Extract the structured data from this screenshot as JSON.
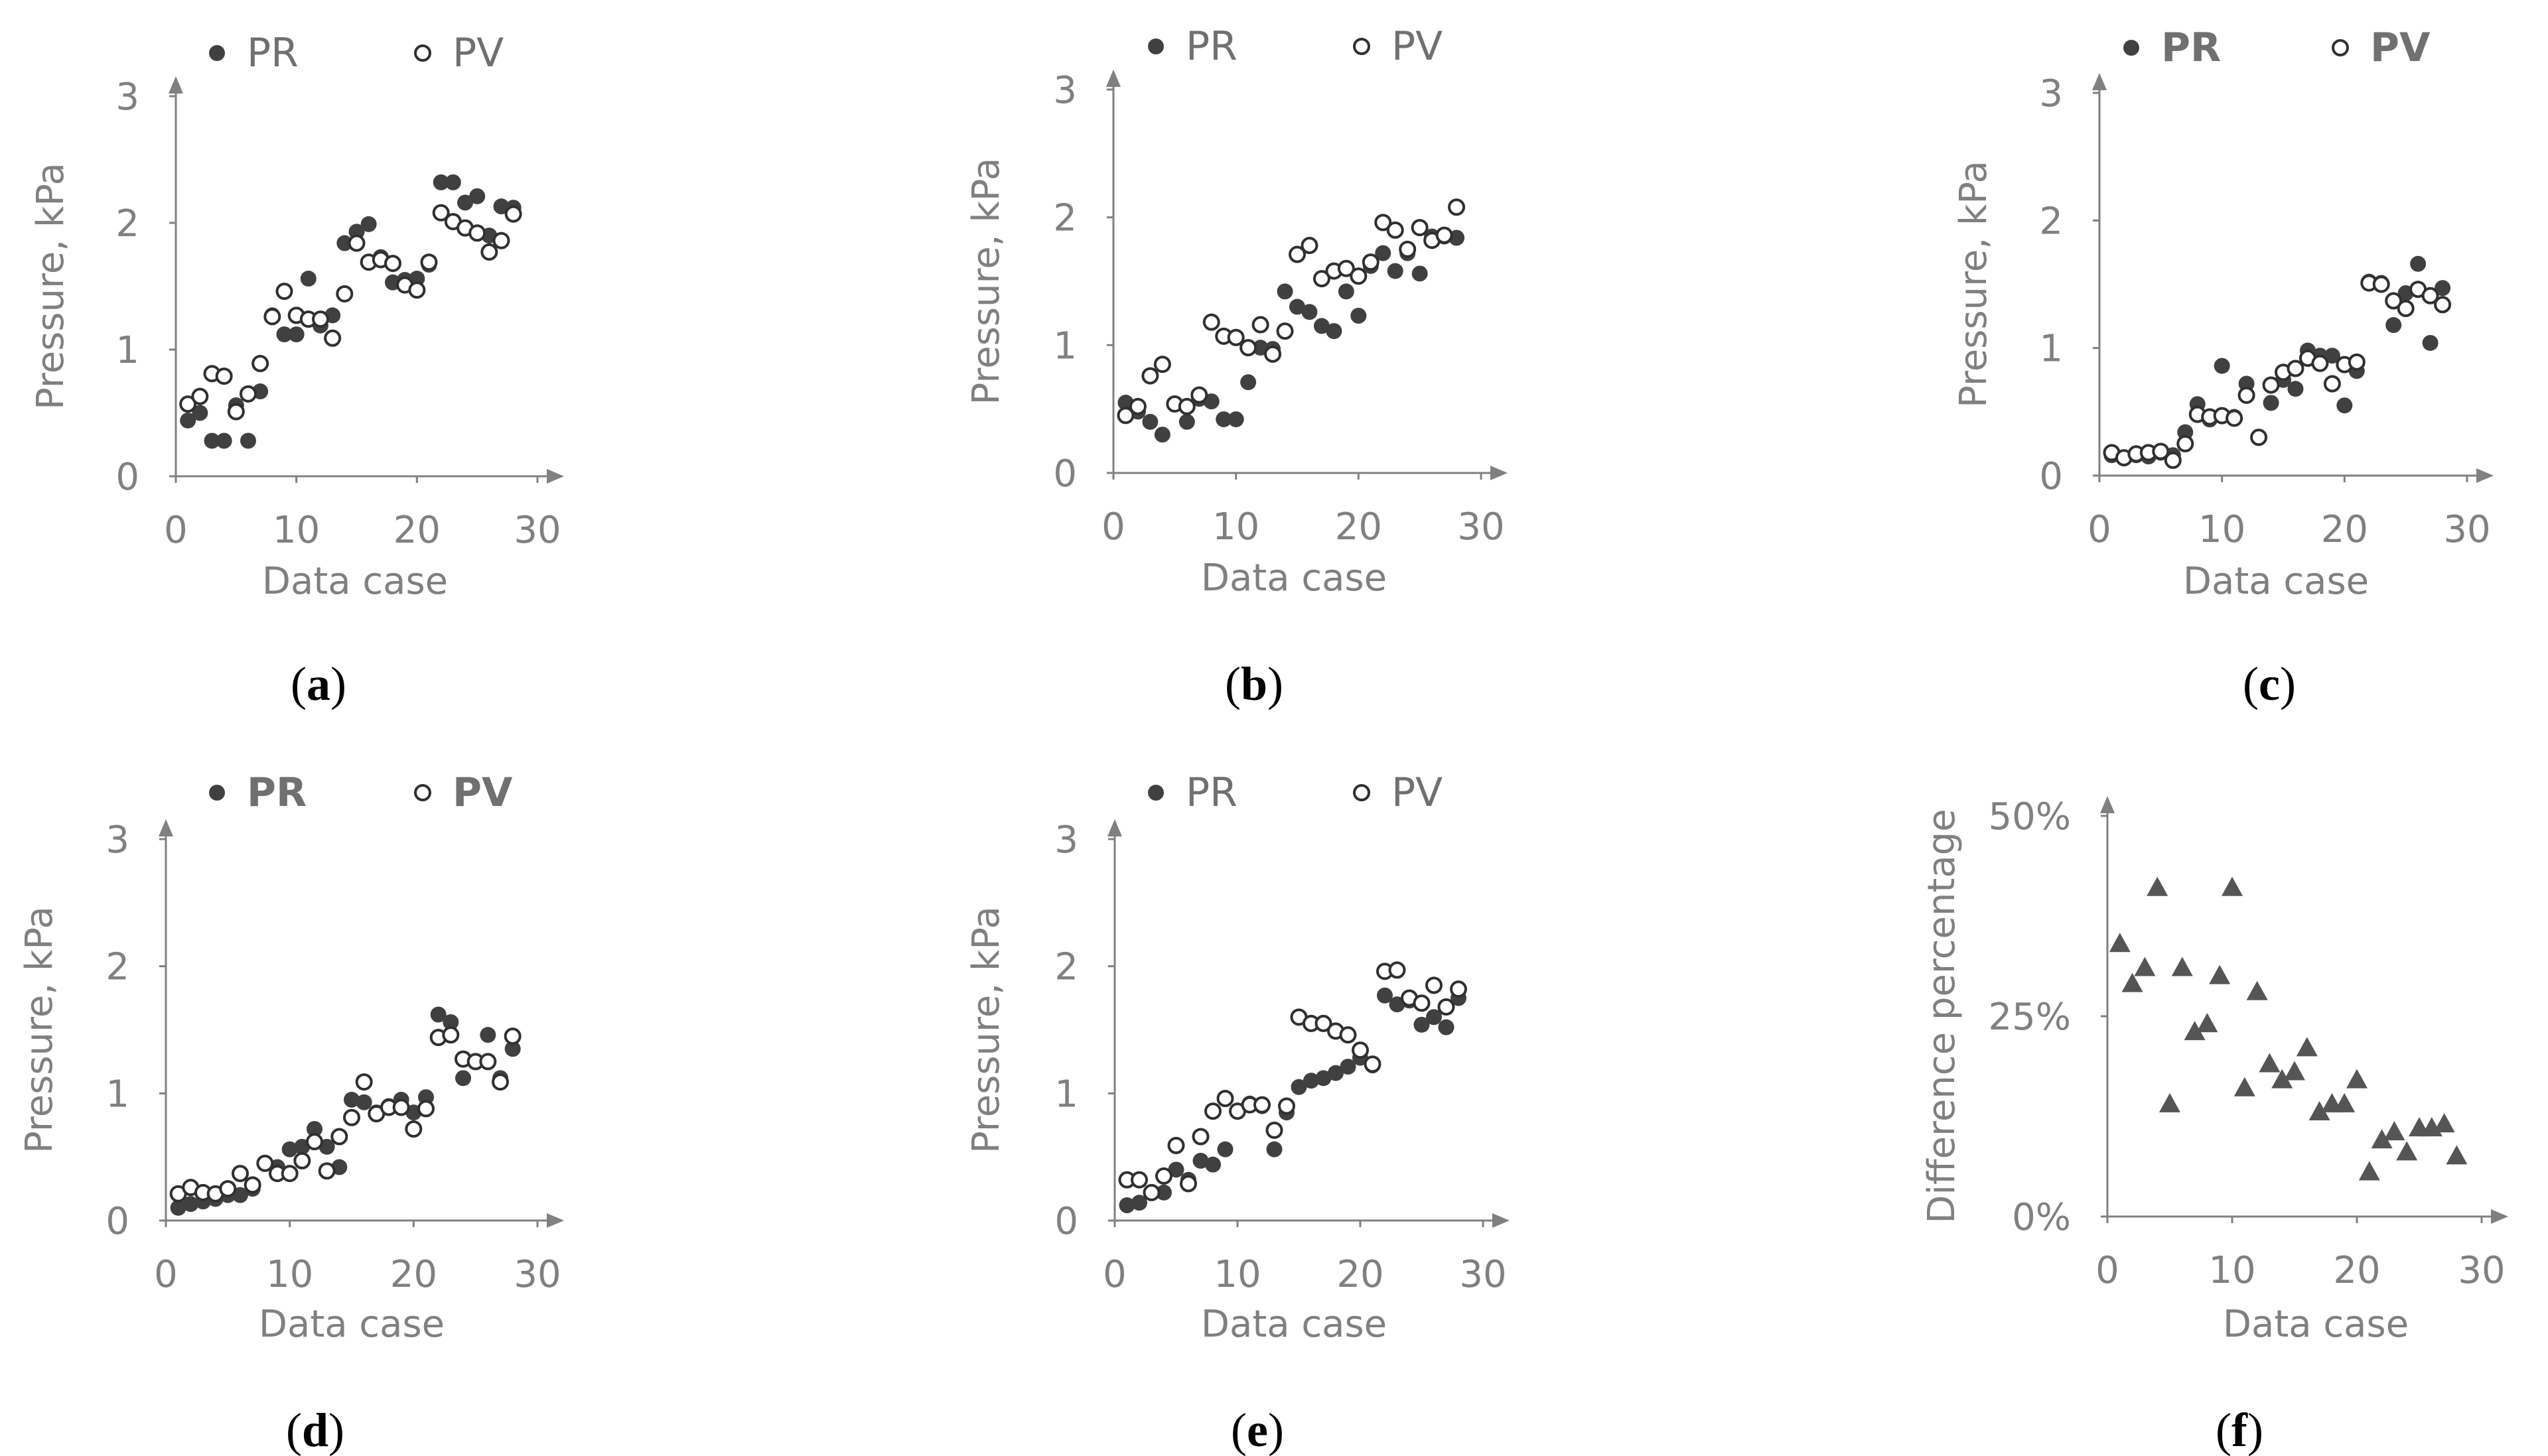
{
  "colors": {
    "axis": "#808080",
    "filled": "#404040",
    "open_stroke": "#303030",
    "text": "#808080"
  },
  "chart_data": [
    {
      "id": "a",
      "type": "scatter",
      "caption_letter": "a",
      "title": "",
      "xlabel": "Data case",
      "ylabel": "Pressure, kPa",
      "xlim": [
        0,
        30
      ],
      "ylim": [
        0,
        3
      ],
      "xticks": [
        "0",
        "10",
        "20",
        "30"
      ],
      "yticks": [
        "0",
        "1",
        "2",
        "3"
      ],
      "legend": [
        "PR",
        "PV"
      ],
      "legend_placement": "top",
      "series": [
        {
          "name": "PR",
          "marker": "filled",
          "x": [
            1,
            2,
            3,
            4,
            5,
            6,
            7,
            8,
            9,
            10,
            11,
            12,
            13,
            14,
            15,
            16,
            17,
            18,
            19,
            20,
            21,
            22,
            23,
            24,
            25,
            26,
            27,
            28
          ],
          "y": [
            0.44,
            0.5,
            0.28,
            0.28,
            0.56,
            0.28,
            0.67,
            1.27,
            1.12,
            1.12,
            1.56,
            1.19,
            1.27,
            1.84,
            1.93,
            1.99,
            1.73,
            1.53,
            1.55,
            1.56,
            1.67,
            2.32,
            2.32,
            2.16,
            2.21,
            1.9,
            2.13,
            2.12
          ]
        },
        {
          "name": "PV",
          "marker": "open",
          "x": [
            1,
            2,
            3,
            4,
            5,
            6,
            7,
            8,
            9,
            10,
            11,
            12,
            13,
            14,
            15,
            16,
            17,
            18,
            19,
            20,
            21,
            22,
            23,
            24,
            25,
            26,
            27,
            28
          ],
          "y": [
            0.57,
            0.63,
            0.81,
            0.79,
            0.51,
            0.65,
            0.89,
            1.26,
            1.46,
            1.27,
            1.24,
            1.24,
            1.09,
            1.44,
            1.84,
            1.69,
            1.71,
            1.68,
            1.51,
            1.47,
            1.69,
            2.08,
            2.01,
            1.96,
            1.92,
            1.77,
            1.86,
            2.07
          ]
        }
      ]
    },
    {
      "id": "b",
      "type": "scatter",
      "caption_letter": "b",
      "title": "",
      "xlabel": "Data case",
      "ylabel": "Pressure, kPa",
      "xlim": [
        0,
        30
      ],
      "ylim": [
        0,
        3
      ],
      "xticks": [
        "0",
        "10",
        "20",
        "30"
      ],
      "yticks": [
        "0",
        "1",
        "2",
        "3"
      ],
      "legend": [
        "PR",
        "PV"
      ],
      "legend_placement": "top",
      "series": [
        {
          "name": "PR",
          "marker": "filled",
          "x": [
            1,
            2,
            3,
            4,
            5,
            6,
            7,
            8,
            9,
            10,
            11,
            12,
            13,
            14,
            15,
            16,
            17,
            18,
            19,
            20,
            21,
            22,
            23,
            24,
            25,
            26,
            27,
            28
          ],
          "y": [
            0.55,
            0.48,
            0.4,
            0.3,
            0.54,
            0.4,
            0.58,
            0.56,
            0.42,
            0.42,
            0.71,
            0.98,
            0.97,
            1.42,
            1.3,
            1.26,
            1.15,
            1.11,
            1.42,
            1.23,
            1.62,
            1.72,
            1.58,
            1.72,
            1.56,
            1.85,
            1.85,
            1.84
          ]
        },
        {
          "name": "PV",
          "marker": "open",
          "x": [
            1,
            2,
            3,
            4,
            5,
            6,
            7,
            8,
            9,
            10,
            11,
            12,
            13,
            14,
            15,
            16,
            17,
            18,
            19,
            20,
            21,
            22,
            23,
            24,
            25,
            26,
            27,
            28
          ],
          "y": [
            0.45,
            0.52,
            0.76,
            0.85,
            0.54,
            0.52,
            0.61,
            1.18,
            1.07,
            1.06,
            0.98,
            1.16,
            0.93,
            1.11,
            1.71,
            1.78,
            1.52,
            1.58,
            1.6,
            1.54,
            1.65,
            1.96,
            1.9,
            1.75,
            1.92,
            1.82,
            1.86,
            2.08
          ]
        }
      ]
    },
    {
      "id": "c",
      "type": "scatter",
      "caption_letter": "c",
      "title": "",
      "xlabel": "Data case",
      "ylabel": "Pressure, kPa",
      "xlim": [
        0,
        30
      ],
      "ylim": [
        0,
        3
      ],
      "xticks": [
        "0",
        "10",
        "20",
        "30"
      ],
      "yticks": [
        "0",
        "1",
        "2",
        "3"
      ],
      "legend": [
        "PR",
        "PV"
      ],
      "legend_placement": "top",
      "series": [
        {
          "name": "PR",
          "marker": "filled",
          "x": [
            1,
            2,
            3,
            4,
            5,
            6,
            7,
            8,
            9,
            10,
            11,
            12,
            13,
            14,
            15,
            16,
            17,
            18,
            19,
            20,
            21,
            22,
            23,
            24,
            25,
            26,
            27,
            28
          ],
          "y": [
            0.16,
            0.14,
            0.16,
            0.15,
            0.18,
            0.16,
            0.34,
            0.56,
            0.44,
            0.86,
            0.46,
            0.72,
            0.3,
            0.57,
            0.75,
            0.68,
            0.98,
            0.94,
            0.94,
            0.55,
            0.82,
            1.52,
            1.51,
            1.18,
            1.43,
            1.66,
            1.04,
            1.47
          ]
        },
        {
          "name": "PV",
          "marker": "open",
          "x": [
            1,
            2,
            3,
            4,
            5,
            6,
            7,
            8,
            9,
            10,
            11,
            12,
            13,
            14,
            15,
            16,
            17,
            18,
            19,
            20,
            21,
            22,
            23,
            24,
            25,
            26,
            27,
            28
          ],
          "y": [
            0.18,
            0.14,
            0.17,
            0.18,
            0.19,
            0.12,
            0.25,
            0.48,
            0.46,
            0.47,
            0.45,
            0.63,
            0.3,
            0.71,
            0.81,
            0.84,
            0.92,
            0.88,
            0.72,
            0.87,
            0.89,
            1.51,
            1.5,
            1.37,
            1.31,
            1.46,
            1.41,
            1.34
          ]
        }
      ]
    },
    {
      "id": "d",
      "type": "scatter",
      "caption_letter": "d",
      "title": "",
      "xlabel": "Data case",
      "ylabel": "Pressure, kPa",
      "xlim": [
        0,
        30
      ],
      "ylim": [
        0,
        3
      ],
      "xticks": [
        "0",
        "10",
        "20",
        "30"
      ],
      "yticks": [
        "0",
        "1",
        "2",
        "3"
      ],
      "legend": [
        "PR",
        "PV"
      ],
      "legend_placement": "top",
      "series": [
        {
          "name": "PR",
          "marker": "filled",
          "x": [
            1,
            2,
            3,
            4,
            5,
            6,
            7,
            8,
            9,
            10,
            11,
            12,
            13,
            14,
            15,
            16,
            17,
            18,
            19,
            20,
            21,
            22,
            23,
            24,
            25,
            26,
            27,
            28
          ],
          "y": [
            0.1,
            0.13,
            0.15,
            0.17,
            0.2,
            0.2,
            0.25,
            0.45,
            0.42,
            0.56,
            0.58,
            0.72,
            0.58,
            0.42,
            0.95,
            0.93,
            0.85,
            0.9,
            0.95,
            0.85,
            0.97,
            1.62,
            1.56,
            1.12,
            1.25,
            1.46,
            1.12,
            1.35
          ]
        },
        {
          "name": "PV",
          "marker": "open",
          "x": [
            1,
            2,
            3,
            4,
            5,
            6,
            7,
            8,
            9,
            10,
            11,
            12,
            13,
            14,
            15,
            16,
            17,
            18,
            19,
            20,
            21,
            22,
            23,
            24,
            25,
            26,
            27,
            28
          ],
          "y": [
            0.21,
            0.26,
            0.22,
            0.21,
            0.25,
            0.37,
            0.28,
            0.45,
            0.37,
            0.37,
            0.47,
            0.62,
            0.39,
            0.66,
            0.81,
            1.09,
            0.84,
            0.89,
            0.89,
            0.72,
            0.88,
            1.44,
            1.46,
            1.27,
            1.25,
            1.25,
            1.09,
            1.45
          ]
        }
      ]
    },
    {
      "id": "e",
      "type": "scatter",
      "caption_letter": "e",
      "title": "",
      "xlabel": "Data case",
      "ylabel": "Pressure, kPa",
      "xlim": [
        0,
        30
      ],
      "ylim": [
        0,
        3
      ],
      "xticks": [
        "0",
        "10",
        "20",
        "30"
      ],
      "yticks": [
        "0",
        "1",
        "2",
        "3"
      ],
      "legend": [
        "PR",
        "PV"
      ],
      "legend_placement": "top",
      "series": [
        {
          "name": "PR",
          "marker": "filled",
          "x": [
            1,
            2,
            3,
            4,
            5,
            6,
            7,
            8,
            9,
            10,
            11,
            12,
            13,
            14,
            15,
            16,
            17,
            18,
            19,
            20,
            21,
            22,
            23,
            24,
            25,
            26,
            27,
            28
          ],
          "y": [
            0.12,
            0.14,
            0.22,
            0.22,
            0.4,
            0.32,
            0.47,
            0.44,
            0.56,
            0.86,
            0.92,
            0.9,
            0.56,
            0.85,
            1.05,
            1.1,
            1.12,
            1.16,
            1.21,
            1.28,
            1.22,
            1.77,
            1.7,
            1.73,
            1.54,
            1.6,
            1.52,
            1.75
          ]
        },
        {
          "name": "PV",
          "marker": "open",
          "x": [
            1,
            2,
            3,
            4,
            5,
            6,
            7,
            8,
            9,
            10,
            11,
            12,
            13,
            14,
            15,
            16,
            17,
            18,
            19,
            20,
            21,
            22,
            23,
            24,
            25,
            26,
            27,
            28
          ],
          "y": [
            0.32,
            0.32,
            0.22,
            0.35,
            0.59,
            0.29,
            0.66,
            0.86,
            0.96,
            0.86,
            0.91,
            0.91,
            0.71,
            0.9,
            1.6,
            1.55,
            1.55,
            1.49,
            1.46,
            1.34,
            1.23,
            1.96,
            1.97,
            1.75,
            1.71,
            1.85,
            1.68,
            1.82
          ]
        }
      ]
    },
    {
      "id": "f",
      "type": "scatter",
      "caption_letter": "f",
      "title": "",
      "xlabel": "Data case",
      "ylabel": "Difference percentage",
      "xlim": [
        0,
        30
      ],
      "ylim": [
        0,
        50
      ],
      "xticks": [
        "0",
        "10",
        "20",
        "30"
      ],
      "yticks": [
        "0%",
        "25%",
        "50%"
      ],
      "legend": [],
      "legend_placement": "none",
      "series": [
        {
          "name": "Difference percentage",
          "marker": "triangle",
          "x": [
            1,
            2,
            3,
            4,
            5,
            6,
            7,
            8,
            9,
            10,
            11,
            12,
            13,
            14,
            15,
            16,
            17,
            18,
            19,
            20,
            21,
            22,
            23,
            24,
            25,
            26,
            27,
            28
          ],
          "y": [
            34,
            29,
            31,
            41,
            14,
            31,
            23,
            24,
            30,
            41,
            16,
            28,
            19,
            17,
            18,
            21,
            13,
            14,
            14,
            17,
            5.5,
            9.5,
            10.5,
            8,
            11,
            11,
            11.5,
            7.5
          ]
        }
      ]
    }
  ]
}
